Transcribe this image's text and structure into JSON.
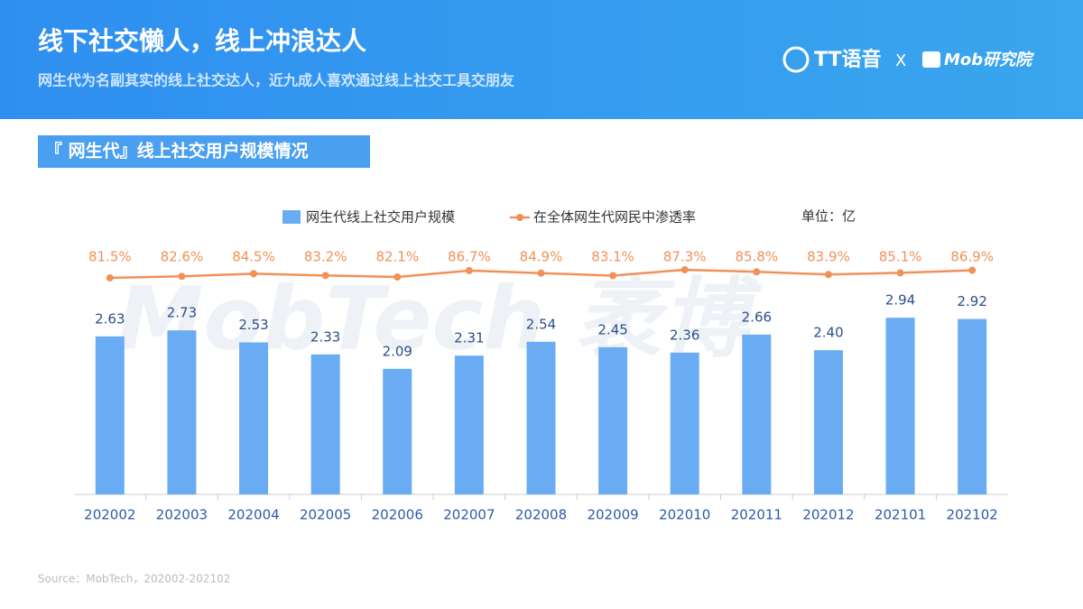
{
  "header": {
    "title": "线下社交懒人，线上冲浪达人",
    "subtitle": "网生代为名副其实的线上社交达人，近九成人喜欢通过线上社交工具交朋友",
    "logo_left": "TT语音",
    "logo_sep": "X",
    "logo_right": "Mob研究院"
  },
  "section_title": "『 网生代』线上社交用户规模情况",
  "chart_data": {
    "type": "bar-line",
    "unit": "单位：亿",
    "watermark": "MobTech 袤博",
    "categories": [
      "202002",
      "202003",
      "202004",
      "202005",
      "202006",
      "202007",
      "202008",
      "202009",
      "202010",
      "202011",
      "202012",
      "202101",
      "202102"
    ],
    "series": [
      {
        "name": "网生代线上社交用户规模",
        "type": "bar",
        "color": "#69acf4",
        "values": [
          2.63,
          2.73,
          2.53,
          2.33,
          2.09,
          2.31,
          2.54,
          2.45,
          2.36,
          2.66,
          2.4,
          2.94,
          2.92
        ],
        "value_labels": [
          "2.63",
          "2.73",
          "2.53",
          "2.33",
          "2.09",
          "2.31",
          "2.54",
          "2.45",
          "2.36",
          "2.66",
          "2.40",
          "2.94",
          "2.92"
        ]
      },
      {
        "name": "在全体网生代网民中渗透率",
        "type": "line",
        "color": "#f0915a",
        "values": [
          81.5,
          82.6,
          84.5,
          83.2,
          82.1,
          86.7,
          84.9,
          83.1,
          87.3,
          85.8,
          83.9,
          85.1,
          86.9
        ],
        "value_labels": [
          "81.5%",
          "82.6%",
          "84.5%",
          "83.2%",
          "82.1%",
          "86.7%",
          "84.9%",
          "83.1%",
          "87.3%",
          "85.8%",
          "83.9%",
          "85.1%",
          "86.9%"
        ]
      }
    ]
  },
  "source": "Source：MobTech，202002-202102"
}
